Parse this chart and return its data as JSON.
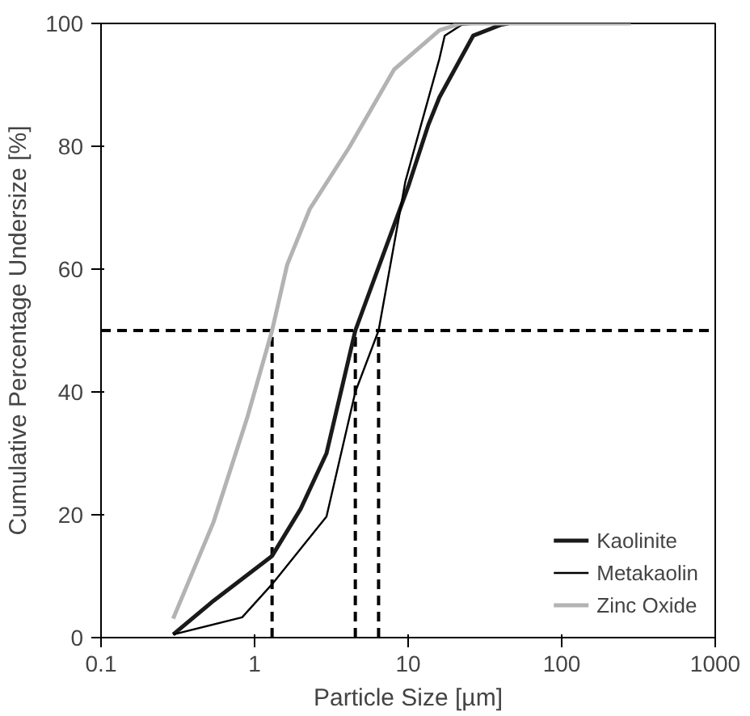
{
  "chart_data": {
    "type": "line",
    "xlabel": "Particle Size [µm]",
    "ylabel": "Cumulative Percentage Undersize [%]",
    "log": "x",
    "xlim": [
      0.1,
      1000
    ],
    "xticks": [
      0.1,
      1,
      10,
      100,
      1000
    ],
    "ylim": [
      0,
      100
    ],
    "yticks": [
      0,
      20,
      40,
      60,
      80,
      100
    ],
    "grid": false,
    "legend": "bottom right",
    "line_style": "solid",
    "marker": "none",
    "series": [
      {
        "name": "Kaolinite",
        "color": "#1a1a1a",
        "x": [
          0.295,
          0.54,
          1.3,
          2.0,
          2.94,
          4.53,
          10.0,
          13.5,
          16,
          26.5,
          40.5,
          45
        ],
        "values": [
          0.5,
          6,
          13.3,
          21,
          30,
          50,
          73.4,
          83.4,
          88,
          98,
          99.8,
          100
        ]
      },
      {
        "name": "Metakaolin",
        "color": "#000000",
        "x": [
          0.295,
          0.83,
          1.3,
          2.94,
          4.53,
          6.42,
          9.6,
          16,
          17.3,
          22.4,
          30
        ],
        "values": [
          0.5,
          3.3,
          8.7,
          19.7,
          40,
          50,
          74.3,
          94.3,
          98,
          99.8,
          100
        ]
      },
      {
        "name": "Zinc Oxide",
        "color": "#b3b3b3",
        "x": [
          0.295,
          0.54,
          0.9,
          1.3,
          1.63,
          2.29,
          4.13,
          8.1,
          16,
          22,
          282
        ],
        "values": [
          3.1,
          18.8,
          36,
          50,
          60.7,
          69.8,
          79.8,
          92.5,
          98.9,
          100,
          100
        ]
      }
    ],
    "ref_lines": [
      {
        "axis": "y",
        "value": 50,
        "color": "#000000",
        "line_style": "dashed"
      },
      {
        "axis": "x",
        "value": 1.3,
        "color": "#000000",
        "line_style": "dashed"
      },
      {
        "axis": "x",
        "value": 4.53,
        "color": "#000000",
        "line_style": "dashed"
      },
      {
        "axis": "x",
        "value": 6.42,
        "color": "#000000",
        "line_style": "dashed"
      }
    ]
  }
}
